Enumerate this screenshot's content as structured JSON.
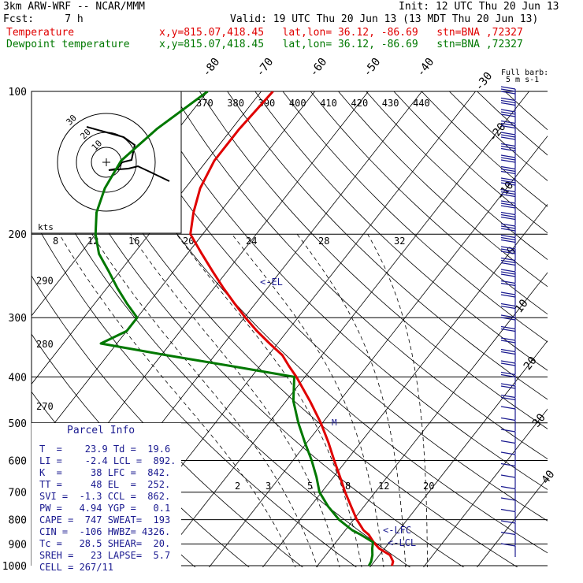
{
  "header": {
    "model": "3km ARW-WRF -- NCAR/MMM",
    "fcst": "Fcst:     7 h",
    "init": "Init: 12 UTC Thu 20 Jun 13",
    "valid": "Valid: 19 UTC Thu 20 Jun 13 (13 MDT Thu 20 Jun 13)",
    "temp_label": "Temperature",
    "dew_label": "Dewpoint temperature",
    "location": "x,y=815.07,418.45   lat,lon= 36.12, -86.69   stn=BNA ,72327"
  },
  "legend": {
    "full_barb": "Full barb:",
    "full_barb_units": "5 m s-1"
  },
  "panel": {
    "title": "Parcel Info",
    "rows": [
      "T  =    23.9 Td =  19.6",
      "LI =    -2.4 LCL =  892.",
      "K  =     38 LFC =  842.",
      "TT =     48 EL  =  252.",
      "SVI =  -1.3 CCL =  862.",
      "PW =   4.94 YGP =   0.1",
      "CAPE =  747 SWEAT=  193",
      "CIN =  -106 HWBZ= 4326.",
      "Tc =   28.5 SHEAR=  20.",
      "SREH =   23 LAPSE=  5.7",
      "CELL = 267/11"
    ]
  },
  "levels": {
    "el": "<-EL",
    "lfc": "<-LFC",
    "lcl": "<-LCL",
    "m": "M"
  },
  "hodograph": {
    "kts": "kts",
    "rings": [
      "10",
      "20",
      "30"
    ]
  },
  "colors": {
    "temperature": "#e00000",
    "dewpoint": "#007800",
    "barbs": "#1a1a90",
    "panel_text": "#1a1a90"
  },
  "chart_data": {
    "type": "line",
    "title": "",
    "ylabel": "",
    "xlabel": "",
    "yscale": "log-pressure (hPa)",
    "pressure_ticks": [
      100,
      200,
      300,
      400,
      500,
      600,
      700,
      800,
      900,
      1000
    ],
    "temperature_ticks": [
      -80,
      -70,
      -60,
      -50,
      -40,
      -30,
      -20,
      -10,
      0,
      10,
      20,
      30,
      40
    ],
    "theta_labels": [
      370,
      380,
      390,
      400,
      410,
      420,
      430,
      440
    ],
    "height_labels": [
      {
        "p": 250,
        "label": "290"
      },
      {
        "p": 340,
        "label": "280"
      },
      {
        "p": 460,
        "label": "270"
      }
    ],
    "wind_speed_labels": [
      "8",
      "12",
      "16",
      "20",
      "24",
      "28",
      "32"
    ],
    "mixing_ratio_labels": [
      "2",
      "3",
      "5",
      "8",
      "12",
      "20"
    ],
    "series": [
      {
        "name": "Temperature",
        "pressure": [
          1000,
          980,
          950,
          920,
          892,
          860,
          842,
          800,
          750,
          700,
          650,
          600,
          550,
          500,
          450,
          400,
          380,
          360,
          340,
          320,
          300,
          280,
          260,
          240,
          220,
          200,
          180,
          160,
          140,
          120,
          100
        ],
        "temperature": [
          23.9,
          23.5,
          22.0,
          19.0,
          17.0,
          15.0,
          13.4,
          10.6,
          7.6,
          4.4,
          1.2,
          -2.3,
          -6.0,
          -10.3,
          -15.5,
          -21.6,
          -24.5,
          -27.4,
          -31.5,
          -35.7,
          -39.8,
          -43.9,
          -48.2,
          -52.6,
          -57.3,
          -62.3,
          -64.9,
          -67.2,
          -68.6,
          -68.6,
          -67.8
        ]
      },
      {
        "name": "Dewpoint temperature",
        "pressure": [
          1000,
          980,
          950,
          920,
          892,
          860,
          842,
          800,
          750,
          700,
          650,
          600,
          550,
          500,
          450,
          400,
          380,
          360,
          340,
          320,
          300,
          280,
          260,
          240,
          220,
          200,
          180,
          160,
          140,
          120,
          100
        ],
        "temperature": [
          19.6,
          19.4,
          18.7,
          17.7,
          16.9,
          13.5,
          11.3,
          7.3,
          3.3,
          -0.4,
          -3.2,
          -6.5,
          -10.4,
          -14.5,
          -18.6,
          -22.0,
          -35.0,
          -49.0,
          -63.0,
          -60.0,
          -60.0,
          -64.0,
          -68.0,
          -72.0,
          -76.5,
          -80.0,
          -83.0,
          -85.0,
          -86.0,
          -84.0,
          -80.0
        ]
      }
    ],
    "hodograph_trace": [
      [
        -2.5,
        4.5
      ],
      [
        2.2,
        3.2
      ],
      [
        3.6,
        2.2
      ],
      [
        3.2,
        0.3
      ],
      [
        2.0,
        0.0
      ],
      [
        1.4,
        -0.8
      ],
      [
        0.3,
        -1.0
      ],
      [
        2.8,
        -0.8
      ],
      [
        4.0,
        -0.5
      ],
      [
        5.5,
        -1.2
      ],
      [
        8.0,
        -2.4
      ]
    ]
  }
}
